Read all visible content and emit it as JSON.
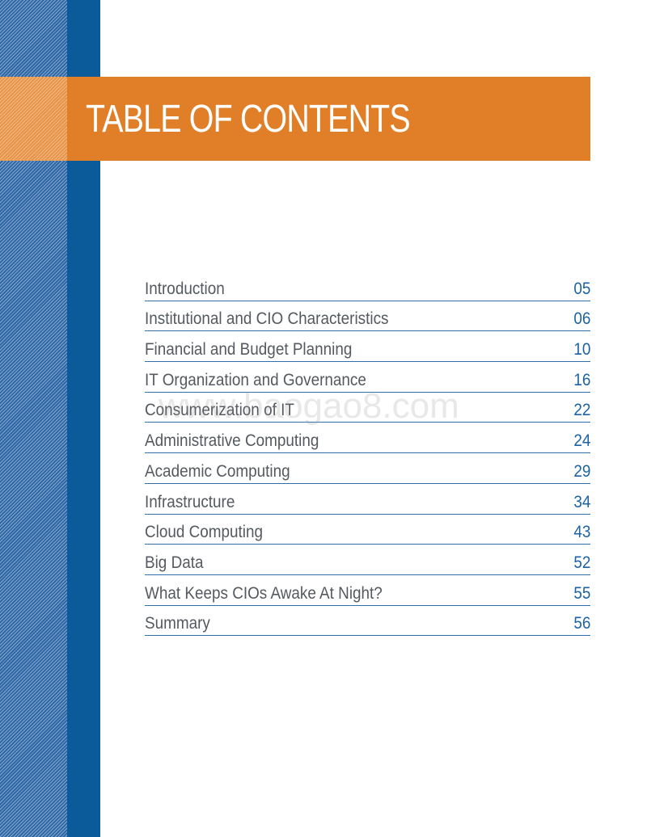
{
  "header": {
    "title": "TABLE OF CONTENTS"
  },
  "toc": [
    {
      "label": "Introduction",
      "page": "05"
    },
    {
      "label": "Institutional and CIO Characteristics",
      "page": "06"
    },
    {
      "label": "Financial and Budget Planning",
      "page": "10"
    },
    {
      "label": "IT Organization and Governance",
      "page": "16"
    },
    {
      "label": "Consumerization of IT",
      "page": "22"
    },
    {
      "label": "Administrative Computing",
      "page": "24"
    },
    {
      "label": "Academic Computing",
      "page": "29"
    },
    {
      "label": "Infrastructure",
      "page": "34"
    },
    {
      "label": "Cloud Computing",
      "page": "43"
    },
    {
      "label": "Big Data",
      "page": "52"
    },
    {
      "label": "What Keeps CIOs Awake At Night?",
      "page": "55"
    },
    {
      "label": "Summary",
      "page": "56"
    }
  ],
  "watermark": "www.baogao8.com",
  "colors": {
    "accent_orange": "#e07f28",
    "brand_blue": "#0b5a9a",
    "rule_blue": "#2f6fad",
    "page_number_blue": "#1b63a6",
    "label_gray": "#555a60"
  }
}
